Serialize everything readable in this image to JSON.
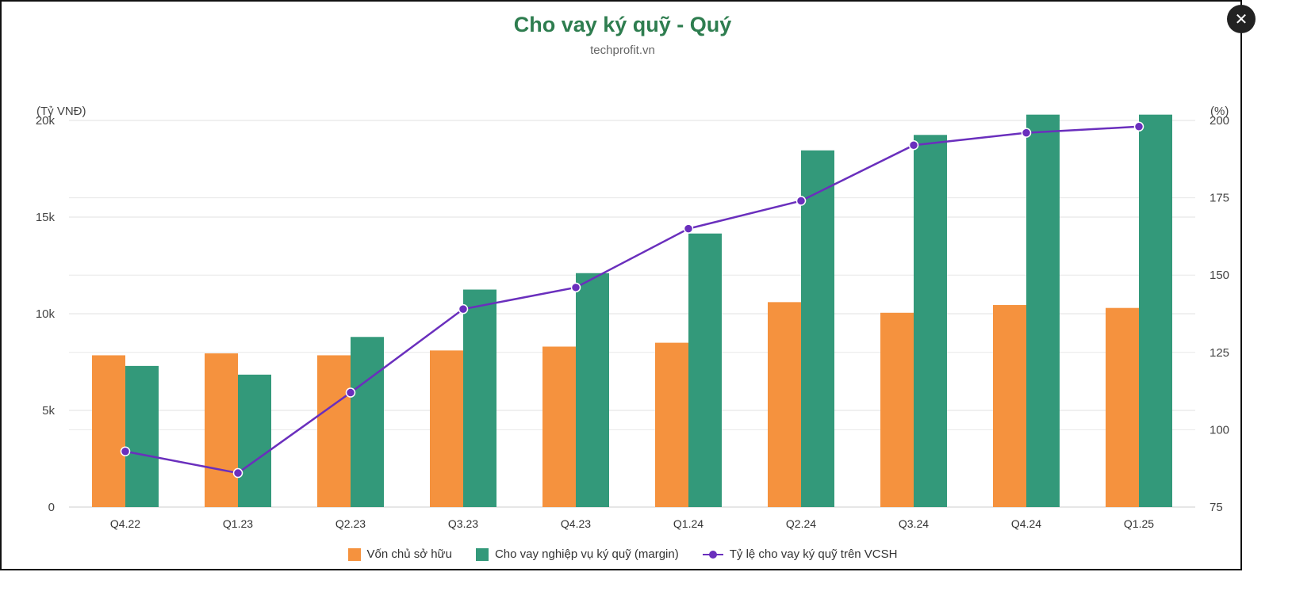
{
  "title": "Cho vay ký quỹ - Quý",
  "subtitle": "techprofit.vn",
  "close_icon": "close-icon",
  "chart_data": {
    "type": "bar",
    "categories": [
      "Q4.22",
      "Q1.23",
      "Q2.23",
      "Q3.23",
      "Q4.23",
      "Q1.24",
      "Q2.24",
      "Q3.24",
      "Q4.24",
      "Q1.25"
    ],
    "y_left_unit": "(Tỷ VNĐ)",
    "y_right_unit": "(%)",
    "y_left_ticks": [
      "0",
      "5k",
      "10k",
      "15k",
      "20k"
    ],
    "y_right_ticks": [
      "75",
      "100",
      "125",
      "150",
      "175",
      "200"
    ],
    "ylim_left": [
      0,
      20000
    ],
    "ylim_right": [
      75,
      200
    ],
    "series": [
      {
        "name": "Vốn chủ sở hữu",
        "type": "bar",
        "axis": "left",
        "color": "#f5923e",
        "values": [
          7850,
          7950,
          7850,
          8100,
          8300,
          8500,
          10600,
          10050,
          10450,
          10300
        ]
      },
      {
        "name": "Cho vay nghiệp vụ ký quỹ (margin)",
        "type": "bar",
        "axis": "left",
        "color": "#33997a",
        "values": [
          7300,
          6850,
          8800,
          11250,
          12100,
          14150,
          18450,
          19250,
          20300,
          20300
        ]
      },
      {
        "name": "Tỷ lệ cho vay ký quỹ trên VCSH",
        "type": "line",
        "axis": "right",
        "color": "#6a2fbd",
        "values": [
          93,
          86,
          112,
          139,
          146,
          165,
          174,
          192,
          196,
          198
        ]
      }
    ],
    "grid": true,
    "legend_position": "bottom"
  }
}
